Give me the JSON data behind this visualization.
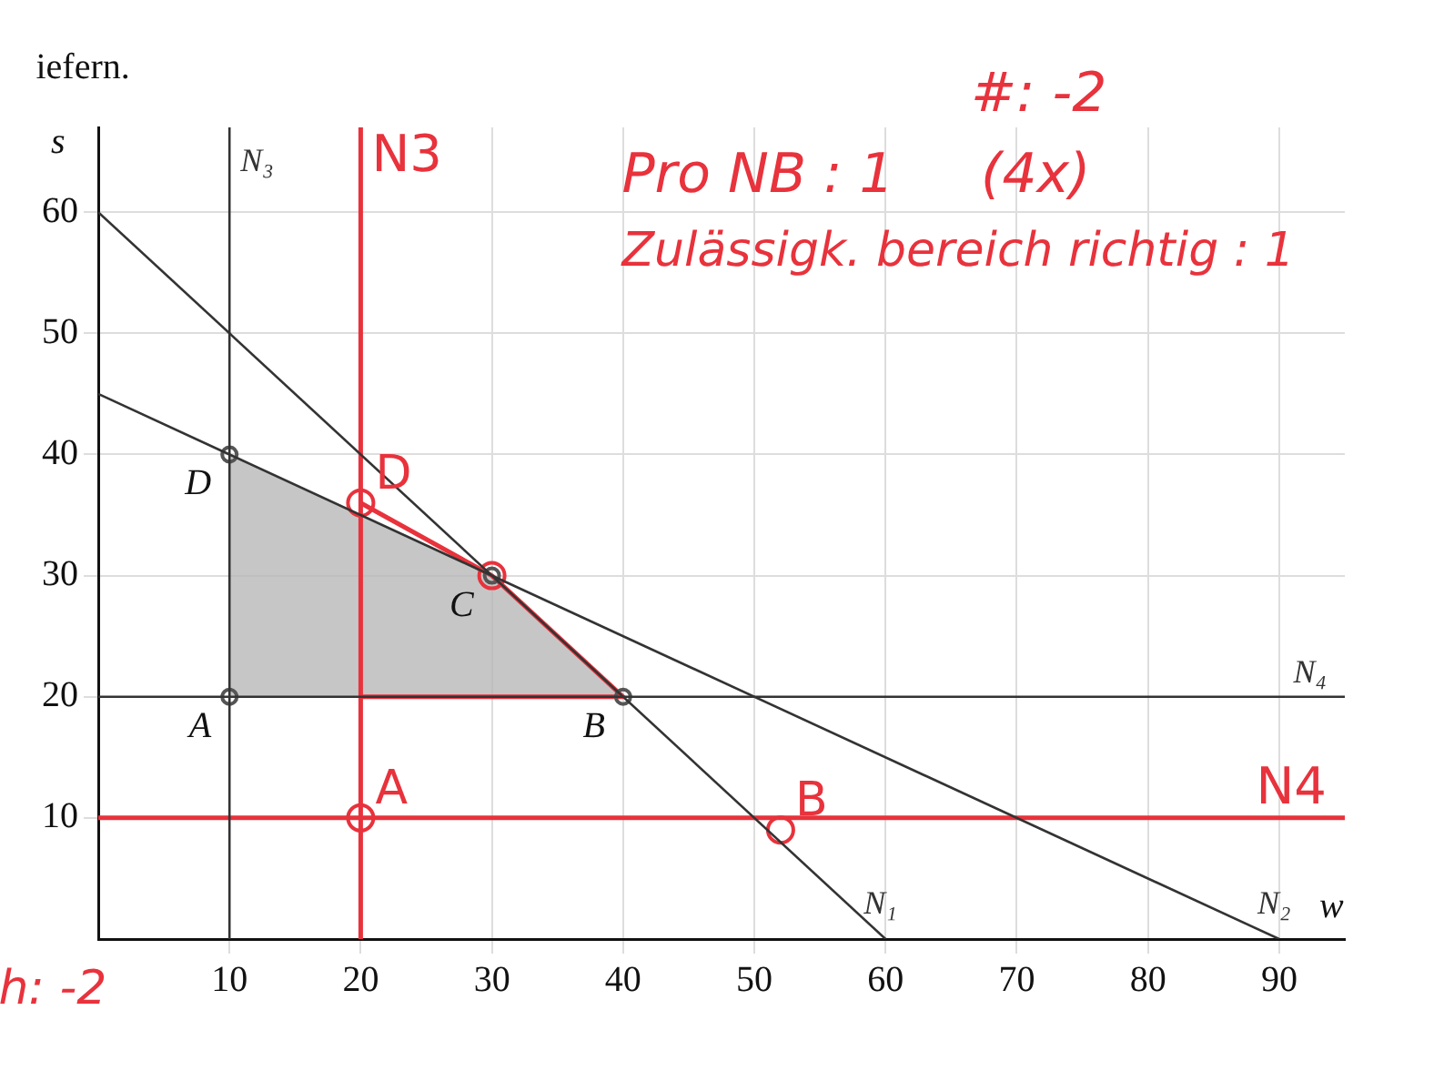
{
  "chart_data": {
    "type": "line",
    "xlabel": "w",
    "ylabel": "s",
    "xlim": [
      0,
      95
    ],
    "ylim": [
      0,
      67
    ],
    "xticks": [
      10,
      20,
      30,
      40,
      50,
      60,
      70,
      80,
      90
    ],
    "yticks": [
      10,
      20,
      30,
      40,
      50,
      60
    ],
    "grid": true,
    "legend": false,
    "marker": "none",
    "series": [
      {
        "name": "N₁",
        "color": "#333333",
        "x": [
          0,
          60
        ],
        "values": [
          60,
          0
        ]
      },
      {
        "name": "N₂",
        "color": "#333333",
        "x": [
          0,
          90
        ],
        "values": [
          45,
          0
        ]
      },
      {
        "name": "N₃",
        "color": "#333333",
        "x": [
          10,
          10
        ],
        "values": [
          0,
          67
        ]
      },
      {
        "name": "N₄",
        "color": "#333333",
        "x": [
          0,
          95
        ],
        "values": [
          20,
          20
        ]
      },
      {
        "type": "area",
        "color": "#b8b8b8",
        "x": [
          10,
          30,
          40,
          10
        ],
        "values": [
          40,
          30,
          20,
          20
        ]
      },
      {
        "type": "scatter",
        "color": "#555555",
        "marker": "circle",
        "x": [
          10,
          40,
          30,
          10
        ],
        "values": [
          20,
          20,
          30,
          40
        ]
      },
      {
        "name": "N3",
        "color": "#e8323c",
        "x": [
          20,
          20
        ],
        "values": [
          0,
          67
        ]
      },
      {
        "name": "N4",
        "color": "#e8323c",
        "x": [
          0,
          95
        ],
        "values": [
          10,
          10
        ]
      },
      {
        "type": "line",
        "color": "#e8323c",
        "x": [
          20,
          30,
          40,
          20
        ],
        "values": [
          36,
          30,
          20,
          20
        ]
      },
      {
        "type": "scatter",
        "color": "#e8323c",
        "marker": "circle",
        "x": [
          20,
          20,
          30,
          52
        ],
        "values": [
          10,
          36,
          30,
          9
        ]
      }
    ],
    "annotations": [
      {
        "text": "A",
        "x": 10,
        "y": 20
      },
      {
        "text": "B",
        "x": 40,
        "y": 20
      },
      {
        "text": "C",
        "x": 30,
        "y": 30
      },
      {
        "text": "D",
        "x": 10,
        "y": 40
      },
      {
        "text": "A",
        "x": 20,
        "y": 10
      },
      {
        "text": "D",
        "x": 20,
        "y": 36
      },
      {
        "text": "B",
        "x": 52,
        "y": 9
      },
      "Pro NB : 1     (4x)",
      "Zulässigk. bereich richtig : 1",
      "#: -2",
      "iefern.",
      "h: -2"
    ]
  }
}
